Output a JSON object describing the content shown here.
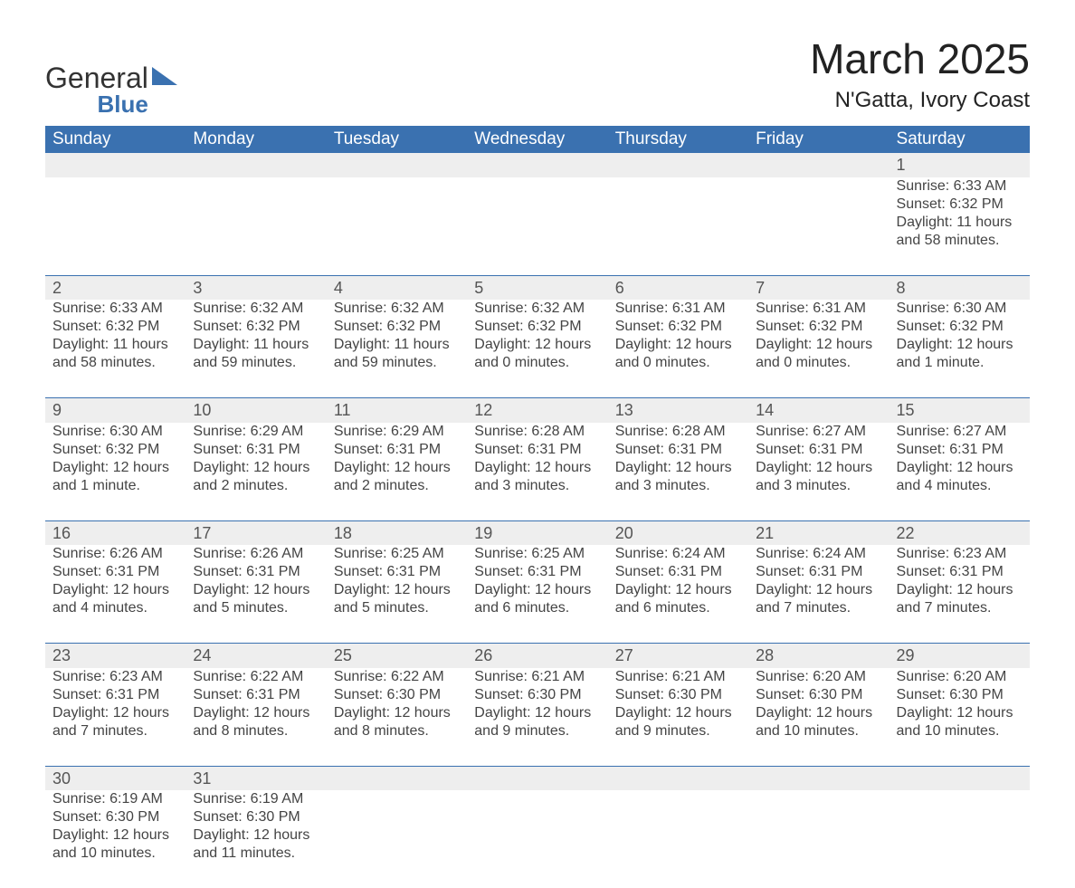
{
  "brand": {
    "name": "General",
    "sub": "Blue",
    "brand_color": "#3a71b0"
  },
  "title": "March 2025",
  "location": "N'Gatta, Ivory Coast",
  "colors": {
    "header_bg": "#3a71b0",
    "header_text": "#ffffff",
    "daynum_bg": "#eeeeee",
    "row_divider": "#3a71b0",
    "body_text": "#444444",
    "page_bg": "#ffffff"
  },
  "typography": {
    "title_fontsize": 46,
    "location_fontsize": 24,
    "header_fontsize": 19,
    "daynum_fontsize": 18,
    "cell_fontsize": 16
  },
  "weekdays": [
    "Sunday",
    "Monday",
    "Tuesday",
    "Wednesday",
    "Thursday",
    "Friday",
    "Saturday"
  ],
  "weeks": [
    [
      null,
      null,
      null,
      null,
      null,
      null,
      {
        "n": "1",
        "sunrise": "Sunrise: 6:33 AM",
        "sunset": "Sunset: 6:32 PM",
        "day1": "Daylight: 11 hours",
        "day2": "and 58 minutes."
      }
    ],
    [
      {
        "n": "2",
        "sunrise": "Sunrise: 6:33 AM",
        "sunset": "Sunset: 6:32 PM",
        "day1": "Daylight: 11 hours",
        "day2": "and 58 minutes."
      },
      {
        "n": "3",
        "sunrise": "Sunrise: 6:32 AM",
        "sunset": "Sunset: 6:32 PM",
        "day1": "Daylight: 11 hours",
        "day2": "and 59 minutes."
      },
      {
        "n": "4",
        "sunrise": "Sunrise: 6:32 AM",
        "sunset": "Sunset: 6:32 PM",
        "day1": "Daylight: 11 hours",
        "day2": "and 59 minutes."
      },
      {
        "n": "5",
        "sunrise": "Sunrise: 6:32 AM",
        "sunset": "Sunset: 6:32 PM",
        "day1": "Daylight: 12 hours",
        "day2": "and 0 minutes."
      },
      {
        "n": "6",
        "sunrise": "Sunrise: 6:31 AM",
        "sunset": "Sunset: 6:32 PM",
        "day1": "Daylight: 12 hours",
        "day2": "and 0 minutes."
      },
      {
        "n": "7",
        "sunrise": "Sunrise: 6:31 AM",
        "sunset": "Sunset: 6:32 PM",
        "day1": "Daylight: 12 hours",
        "day2": "and 0 minutes."
      },
      {
        "n": "8",
        "sunrise": "Sunrise: 6:30 AM",
        "sunset": "Sunset: 6:32 PM",
        "day1": "Daylight: 12 hours",
        "day2": "and 1 minute."
      }
    ],
    [
      {
        "n": "9",
        "sunrise": "Sunrise: 6:30 AM",
        "sunset": "Sunset: 6:32 PM",
        "day1": "Daylight: 12 hours",
        "day2": "and 1 minute."
      },
      {
        "n": "10",
        "sunrise": "Sunrise: 6:29 AM",
        "sunset": "Sunset: 6:31 PM",
        "day1": "Daylight: 12 hours",
        "day2": "and 2 minutes."
      },
      {
        "n": "11",
        "sunrise": "Sunrise: 6:29 AM",
        "sunset": "Sunset: 6:31 PM",
        "day1": "Daylight: 12 hours",
        "day2": "and 2 minutes."
      },
      {
        "n": "12",
        "sunrise": "Sunrise: 6:28 AM",
        "sunset": "Sunset: 6:31 PM",
        "day1": "Daylight: 12 hours",
        "day2": "and 3 minutes."
      },
      {
        "n": "13",
        "sunrise": "Sunrise: 6:28 AM",
        "sunset": "Sunset: 6:31 PM",
        "day1": "Daylight: 12 hours",
        "day2": "and 3 minutes."
      },
      {
        "n": "14",
        "sunrise": "Sunrise: 6:27 AM",
        "sunset": "Sunset: 6:31 PM",
        "day1": "Daylight: 12 hours",
        "day2": "and 3 minutes."
      },
      {
        "n": "15",
        "sunrise": "Sunrise: 6:27 AM",
        "sunset": "Sunset: 6:31 PM",
        "day1": "Daylight: 12 hours",
        "day2": "and 4 minutes."
      }
    ],
    [
      {
        "n": "16",
        "sunrise": "Sunrise: 6:26 AM",
        "sunset": "Sunset: 6:31 PM",
        "day1": "Daylight: 12 hours",
        "day2": "and 4 minutes."
      },
      {
        "n": "17",
        "sunrise": "Sunrise: 6:26 AM",
        "sunset": "Sunset: 6:31 PM",
        "day1": "Daylight: 12 hours",
        "day2": "and 5 minutes."
      },
      {
        "n": "18",
        "sunrise": "Sunrise: 6:25 AM",
        "sunset": "Sunset: 6:31 PM",
        "day1": "Daylight: 12 hours",
        "day2": "and 5 minutes."
      },
      {
        "n": "19",
        "sunrise": "Sunrise: 6:25 AM",
        "sunset": "Sunset: 6:31 PM",
        "day1": "Daylight: 12 hours",
        "day2": "and 6 minutes."
      },
      {
        "n": "20",
        "sunrise": "Sunrise: 6:24 AM",
        "sunset": "Sunset: 6:31 PM",
        "day1": "Daylight: 12 hours",
        "day2": "and 6 minutes."
      },
      {
        "n": "21",
        "sunrise": "Sunrise: 6:24 AM",
        "sunset": "Sunset: 6:31 PM",
        "day1": "Daylight: 12 hours",
        "day2": "and 7 minutes."
      },
      {
        "n": "22",
        "sunrise": "Sunrise: 6:23 AM",
        "sunset": "Sunset: 6:31 PM",
        "day1": "Daylight: 12 hours",
        "day2": "and 7 minutes."
      }
    ],
    [
      {
        "n": "23",
        "sunrise": "Sunrise: 6:23 AM",
        "sunset": "Sunset: 6:31 PM",
        "day1": "Daylight: 12 hours",
        "day2": "and 7 minutes."
      },
      {
        "n": "24",
        "sunrise": "Sunrise: 6:22 AM",
        "sunset": "Sunset: 6:31 PM",
        "day1": "Daylight: 12 hours",
        "day2": "and 8 minutes."
      },
      {
        "n": "25",
        "sunrise": "Sunrise: 6:22 AM",
        "sunset": "Sunset: 6:30 PM",
        "day1": "Daylight: 12 hours",
        "day2": "and 8 minutes."
      },
      {
        "n": "26",
        "sunrise": "Sunrise: 6:21 AM",
        "sunset": "Sunset: 6:30 PM",
        "day1": "Daylight: 12 hours",
        "day2": "and 9 minutes."
      },
      {
        "n": "27",
        "sunrise": "Sunrise: 6:21 AM",
        "sunset": "Sunset: 6:30 PM",
        "day1": "Daylight: 12 hours",
        "day2": "and 9 minutes."
      },
      {
        "n": "28",
        "sunrise": "Sunrise: 6:20 AM",
        "sunset": "Sunset: 6:30 PM",
        "day1": "Daylight: 12 hours",
        "day2": "and 10 minutes."
      },
      {
        "n": "29",
        "sunrise": "Sunrise: 6:20 AM",
        "sunset": "Sunset: 6:30 PM",
        "day1": "Daylight: 12 hours",
        "day2": "and 10 minutes."
      }
    ],
    [
      {
        "n": "30",
        "sunrise": "Sunrise: 6:19 AM",
        "sunset": "Sunset: 6:30 PM",
        "day1": "Daylight: 12 hours",
        "day2": "and 10 minutes."
      },
      {
        "n": "31",
        "sunrise": "Sunrise: 6:19 AM",
        "sunset": "Sunset: 6:30 PM",
        "day1": "Daylight: 12 hours",
        "day2": "and 11 minutes."
      },
      null,
      null,
      null,
      null,
      null
    ]
  ]
}
